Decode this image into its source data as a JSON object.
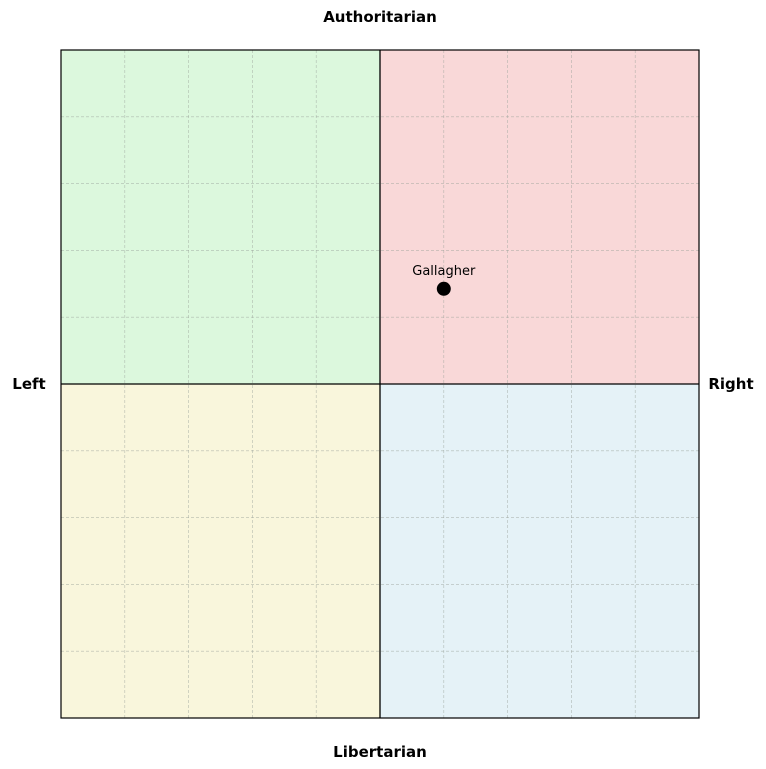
{
  "chart_data": {
    "type": "scatter",
    "title": "",
    "xlabel_left": "Left",
    "xlabel_right": "Right",
    "ylabel_top": "Authoritarian",
    "ylabel_bottom": "Libertarian",
    "xlim": [
      -10,
      10
    ],
    "ylim": [
      -10,
      10
    ],
    "grid": true,
    "grid_step": 2,
    "quadrants": {
      "top_left": "#dcf8dd",
      "top_right": "#f9d8d8",
      "bottom_left": "#f9f6dc",
      "bottom_right": "#e5f2f7"
    },
    "points": [
      {
        "label": "Gallagher",
        "x": 2,
        "y": 2.85
      }
    ]
  }
}
